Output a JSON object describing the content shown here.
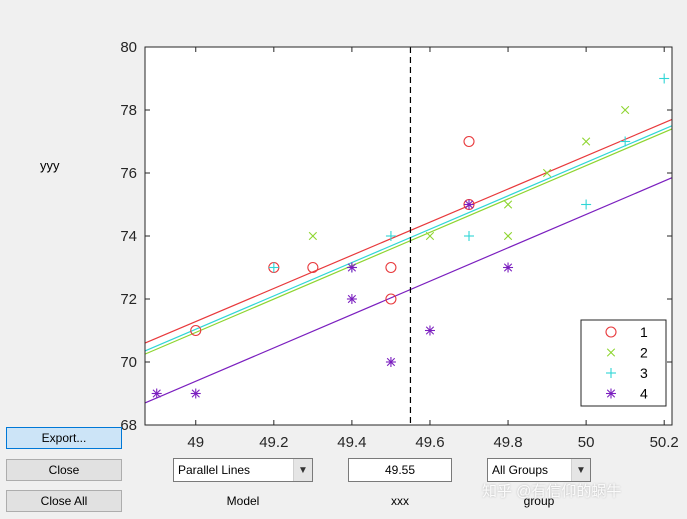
{
  "ylabel": "yyy",
  "buttons": {
    "export": "Export...",
    "close": "Close",
    "close_all": "Close All"
  },
  "model": {
    "selected": "Parallel Lines",
    "caption": "Model"
  },
  "xxx": {
    "value": "49.55",
    "caption": "xxx"
  },
  "group": {
    "selected": "All Groups",
    "caption": "group"
  },
  "watermark": "知乎 @有信仰的蜗牛",
  "chart_data": {
    "type": "scatter",
    "xlim": [
      48.87,
      50.22
    ],
    "ylim": [
      68,
      80
    ],
    "xticks": [
      49,
      49.2,
      49.4,
      49.6,
      49.8,
      50,
      50.2
    ],
    "yticks": [
      68,
      70,
      72,
      74,
      76,
      78,
      80
    ],
    "cursor_x": 49.55,
    "legend_position": "bottom-right",
    "series": [
      {
        "name": "1",
        "marker": "circle",
        "color": "#e8393c",
        "points": [
          [
            49.0,
            71
          ],
          [
            49.2,
            73
          ],
          [
            49.3,
            73
          ],
          [
            49.5,
            73
          ],
          [
            49.5,
            72
          ],
          [
            49.7,
            77
          ],
          [
            49.7,
            75
          ]
        ],
        "fit": [
          70.6,
          77.7
        ]
      },
      {
        "name": "2",
        "marker": "x",
        "color": "#8ed530",
        "points": [
          [
            49.3,
            74
          ],
          [
            49.6,
            74
          ],
          [
            49.8,
            75
          ],
          [
            49.8,
            74
          ],
          [
            49.9,
            76
          ],
          [
            50.0,
            77
          ],
          [
            50.1,
            78
          ]
        ],
        "fit": [
          70.25,
          77.4
        ]
      },
      {
        "name": "3",
        "marker": "plus",
        "color": "#2fd6d6",
        "points": [
          [
            49.2,
            73
          ],
          [
            49.4,
            73
          ],
          [
            49.5,
            74
          ],
          [
            49.7,
            74
          ],
          [
            50.0,
            75
          ],
          [
            50.1,
            77
          ],
          [
            50.2,
            79
          ]
        ],
        "fit": [
          70.35,
          77.5
        ]
      },
      {
        "name": "4",
        "marker": "star",
        "color": "#7b1fbf",
        "points": [
          [
            48.9,
            69
          ],
          [
            49.0,
            69
          ],
          [
            49.4,
            73
          ],
          [
            49.4,
            72
          ],
          [
            49.5,
            70
          ],
          [
            49.6,
            71
          ],
          [
            49.7,
            75
          ],
          [
            49.8,
            73
          ]
        ],
        "fit": [
          68.7,
          75.85
        ]
      }
    ]
  }
}
